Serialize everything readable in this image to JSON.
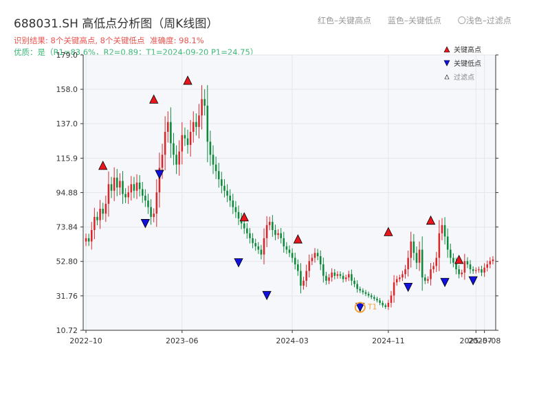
{
  "title": "688031.SH 高低点分析图（周K线图）",
  "top_legend": {
    "red": "红色–关键高点",
    "blue": "蓝色–关键低点",
    "light": "〇浅色–过滤点"
  },
  "subtitle": {
    "line1": "识别结果: 8个关键高点, 8个关键低点",
    "accuracy": "准确度: 98.1%",
    "line2": "优质：是（R1=83.6%，R2=0.89；T1=2024-09-20 P1=24.75）"
  },
  "colors": {
    "up": "#d9262b",
    "down": "#0c8a3a",
    "high_marker": "#e8161c",
    "low_marker": "#1010e0",
    "t1_ring": "#f2a33a",
    "plot_bg": "#f5f7fa",
    "grid": "#e3e6ea"
  },
  "chart_data": {
    "type": "candlestick",
    "title": "688031.SH 高低点分析图（周K线图）",
    "xlabel": "",
    "ylabel": "",
    "ylim": [
      10.72,
      179.0
    ],
    "y_ticks": [
      10.72,
      31.76,
      52.8,
      73.84,
      94.88,
      115.9,
      137.0,
      158.0,
      179.0
    ],
    "x_ticks": [
      {
        "label": "2022–10",
        "index": 0
      },
      {
        "label": "2023–06",
        "index": 34
      },
      {
        "label": "2024–03",
        "index": 73
      },
      {
        "label": "2024–11",
        "index": 107
      },
      {
        "label": "2025–07",
        "index": 138
      },
      {
        "label": "2025–08",
        "index": 141
      }
    ],
    "candles_count": 145,
    "close_series": [
      67.0,
      65.0,
      72.0,
      80.0,
      78.0,
      85.0,
      82.0,
      88.0,
      100.0,
      96.0,
      104.0,
      98.0,
      102.0,
      94.0,
      92.0,
      95.0,
      100.0,
      96.0,
      101.0,
      97.0,
      93.0,
      90.0,
      86.0,
      80.0,
      82.0,
      95.0,
      110.0,
      118.0,
      132.0,
      138.0,
      125.0,
      118.0,
      112.0,
      120.0,
      130.0,
      128.0,
      124.0,
      132.0,
      138.0,
      135.0,
      142.0,
      152.0,
      148.0,
      126.0,
      118.0,
      112.0,
      108.0,
      103.0,
      99.0,
      96.0,
      93.0,
      90.0,
      86.0,
      83.0,
      79.0,
      76.0,
      73.0,
      70.0,
      67.0,
      64.0,
      62.0,
      60.0,
      57.0,
      67.0,
      75.0,
      77.0,
      72.0,
      69.0,
      70.0,
      67.0,
      62.0,
      60.0,
      58.0,
      55.0,
      51.0,
      47.0,
      38.0,
      41.0,
      47.0,
      53.0,
      55.0,
      58.0,
      56.0,
      51.0,
      44.0,
      41.0,
      43.0,
      46.0,
      44.0,
      45.0,
      44.0,
      42.0,
      43.0,
      45.0,
      41.0,
      39.0,
      36.0,
      35.0,
      34.0,
      33.0,
      32.0,
      31.0,
      30.0,
      29.0,
      27.5,
      26.0,
      25.0,
      27.5,
      32.0,
      40.0,
      42.0,
      43.0,
      45.0,
      48.0,
      55.0,
      65.0,
      58.0,
      52.0,
      60.0,
      43.0,
      41.0,
      42.0,
      48.0,
      50.0,
      55.0,
      70.0,
      75.0,
      68.0,
      60.0,
      55.0,
      52.0,
      48.0,
      45.0,
      46.0,
      53.0,
      51.0,
      48.0,
      47.0,
      47.5,
      48.0,
      46.0,
      49.0,
      51.0,
      53.0,
      54.0
    ],
    "high_points": [
      {
        "index": 6,
        "price": 111.5
      },
      {
        "index": 24,
        "price": 152.0
      },
      {
        "index": 36,
        "price": 163.5
      },
      {
        "index": 56,
        "price": 80.0
      },
      {
        "index": 75,
        "price": 66.5
      },
      {
        "index": 107,
        "price": 71.0
      },
      {
        "index": 122,
        "price": 78.0
      },
      {
        "index": 132,
        "price": 54.0
      }
    ],
    "low_points": [
      {
        "index": 21,
        "price": 76.0
      },
      {
        "index": 26,
        "price": 106.0
      },
      {
        "index": 54,
        "price": 52.0
      },
      {
        "index": 64,
        "price": 32.0
      },
      {
        "index": 97,
        "price": 24.75
      },
      {
        "index": 114,
        "price": 37.0
      },
      {
        "index": 127,
        "price": 40.0
      },
      {
        "index": 137,
        "price": 41.0
      }
    ],
    "t1_label": "T1",
    "t1_index": 97,
    "t1_price": 24.75,
    "legend": {
      "high": "关键高点",
      "low": "关键低点",
      "filtered": "过滤点"
    },
    "legend_position": "top-right"
  }
}
